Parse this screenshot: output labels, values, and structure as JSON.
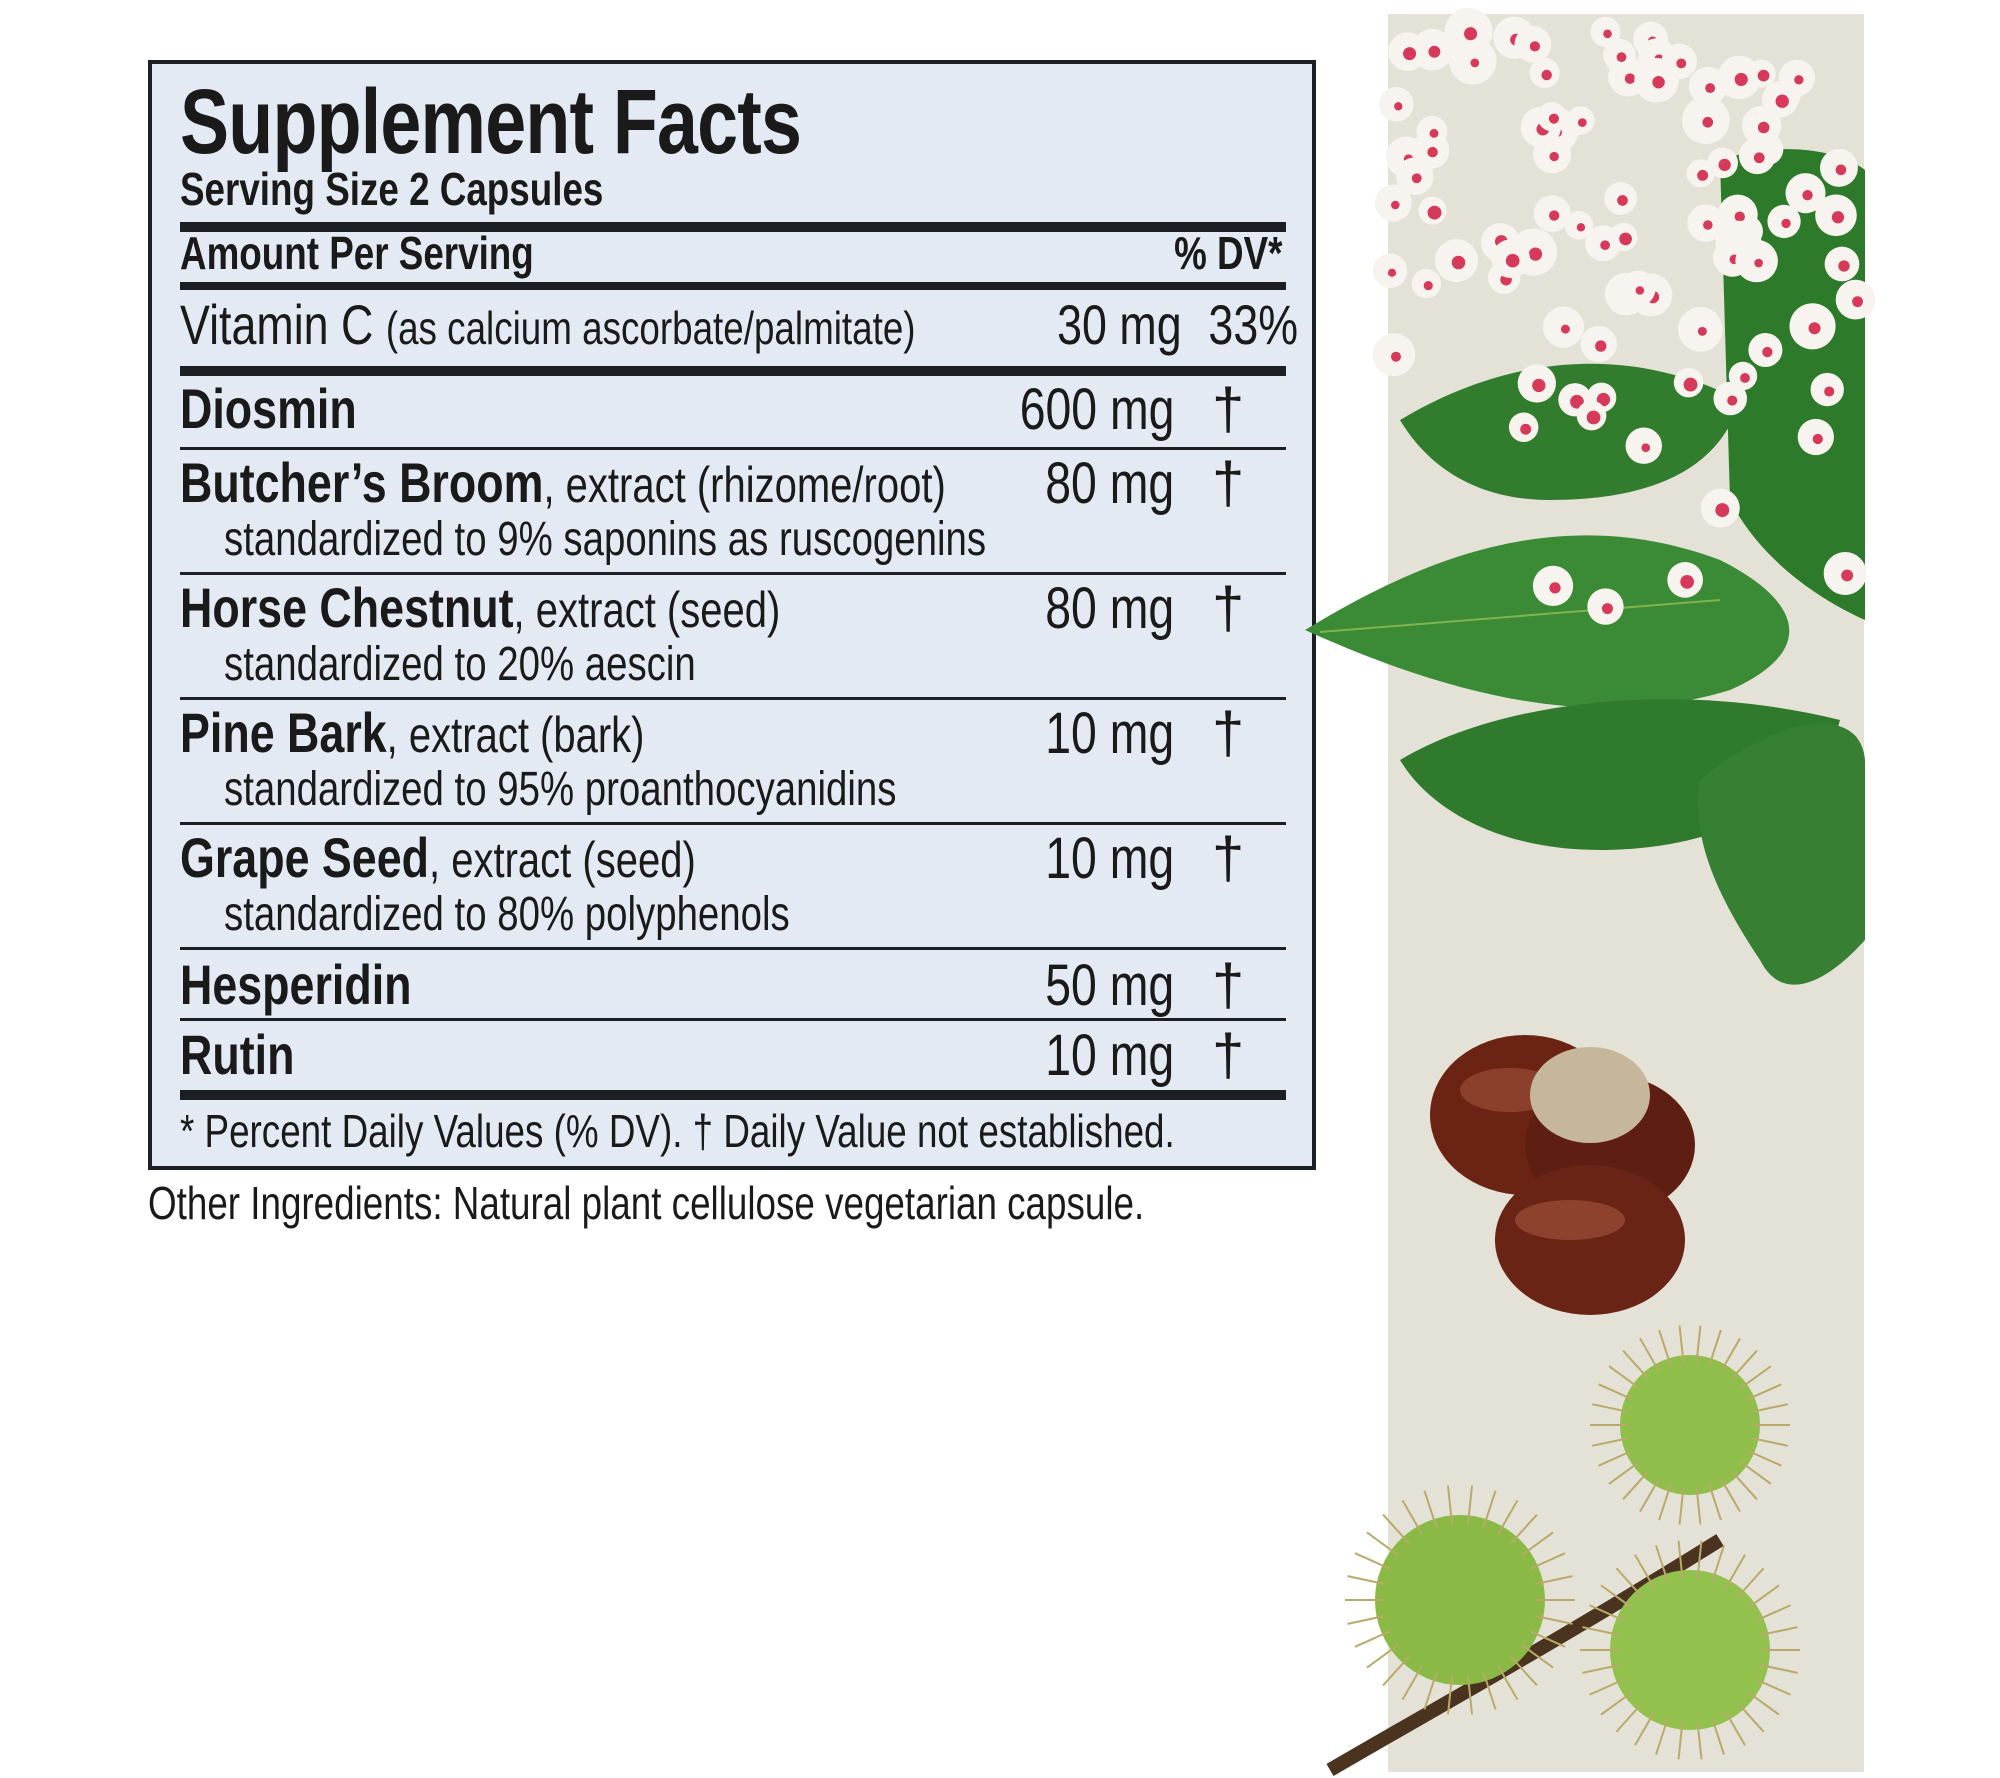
{
  "label": {
    "title": "Supplement Facts",
    "serving_size": "Serving Size 2 Capsules",
    "header_left": "Amount Per Serving",
    "header_right": "% DV*",
    "vitamin_c": {
      "name": "Vitamin C",
      "detail": "(as calcium ascorbate/palmitate)",
      "amount": "30 mg",
      "dv": "33%"
    },
    "ingredients": [
      {
        "name": "Diosmin",
        "detail": "",
        "standardized": "",
        "amount": "600 mg",
        "dv": "†"
      },
      {
        "name": "Butcher’s Broom",
        "detail": ", extract (rhizome/root)",
        "standardized": "standardized to 9% saponins as ruscogenins",
        "amount": "80 mg",
        "dv": "†"
      },
      {
        "name": "Horse Chestnut",
        "detail": ", extract (seed)",
        "standardized": "standardized to 20% aescin",
        "amount": "80 mg",
        "dv": "†"
      },
      {
        "name": "Pine Bark",
        "detail": ", extract (bark)",
        "standardized": "standardized to 95% proanthocyanidins",
        "amount": "10 mg",
        "dv": "†"
      },
      {
        "name": "Grape Seed",
        "detail": ", extract (seed)",
        "standardized": "standardized to 80% polyphenols",
        "amount": "10 mg",
        "dv": "†"
      },
      {
        "name": "Hesperidin",
        "detail": "",
        "standardized": "",
        "amount": "50 mg",
        "dv": "†"
      },
      {
        "name": "Rutin",
        "detail": "",
        "standardized": "",
        "amount": "10 mg",
        "dv": "†"
      }
    ],
    "footnote": "* Percent Daily Values (% DV). † Daily Value not established."
  },
  "other_ingredients": "Other Ingredients: Natural plant cellulose vegetarian capsule.",
  "colors": {
    "label_bg": "#e3eaf4",
    "rule": "#1c1f24",
    "panel_bg": "#e4e2d6"
  },
  "images": [
    "horse-chestnut-flowers-and-leaves",
    "horse-chestnut-seeds",
    "spiky-green-chestnut-husks"
  ]
}
